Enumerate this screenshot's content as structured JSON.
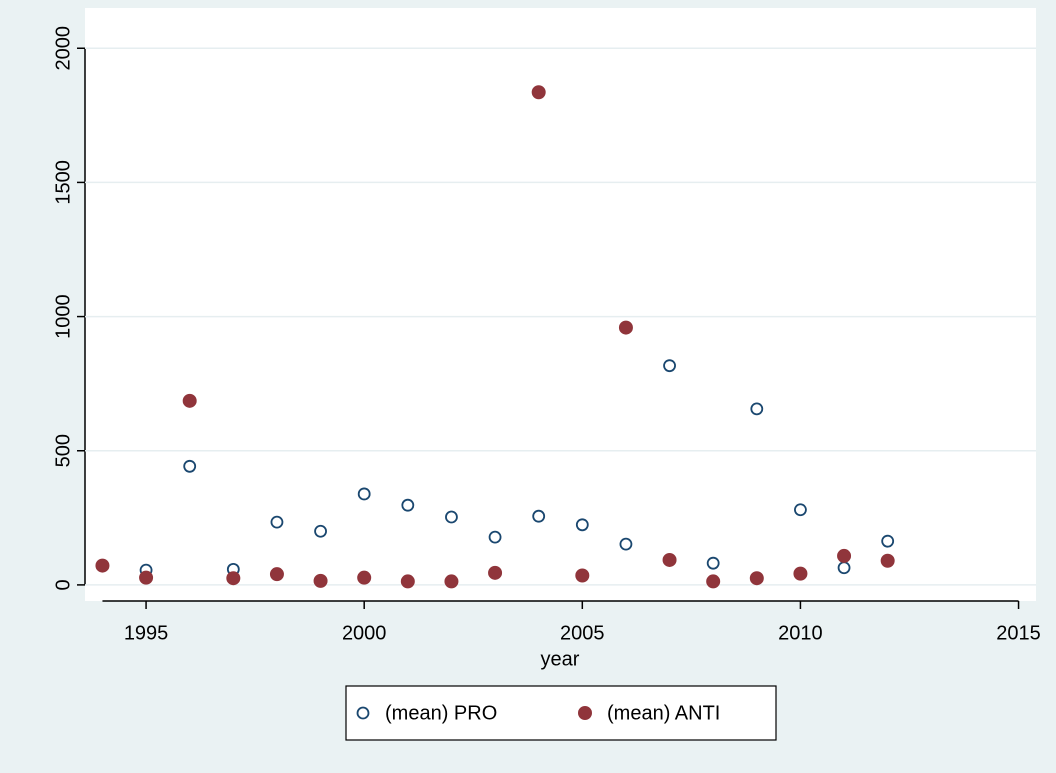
{
  "chart_data": {
    "type": "scatter",
    "x_label": "year",
    "x": [
      1994,
      1995,
      1996,
      1997,
      1998,
      1999,
      2000,
      2001,
      2002,
      2003,
      2004,
      2005,
      2006,
      2007,
      2008,
      2009,
      2010,
      2011,
      2012
    ],
    "series": [
      {
        "name": "(mean) PRO",
        "color": "#1a476f",
        "filled": false,
        "values": [
          72,
          55,
          442,
          58,
          234,
          200,
          339,
          297,
          253,
          178,
          256,
          224,
          152,
          817,
          81,
          656,
          280,
          64,
          163
        ]
      },
      {
        "name": "(mean) ANTI",
        "color": "#90353b",
        "filled": true,
        "values": [
          72,
          27,
          686,
          25,
          40,
          15,
          27,
          13,
          13,
          45,
          1836,
          35,
          959,
          93,
          13,
          25,
          42,
          108,
          90
        ]
      }
    ],
    "xlim": [
      1993.6,
      2015.4
    ],
    "xticks": [
      1995,
      2000,
      2005,
      2010,
      2015
    ],
    "ylim": [
      -60,
      2150
    ],
    "yticks": [
      0,
      500,
      1000,
      1500,
      2000
    ],
    "grid": true,
    "legend_position": "bottom"
  }
}
